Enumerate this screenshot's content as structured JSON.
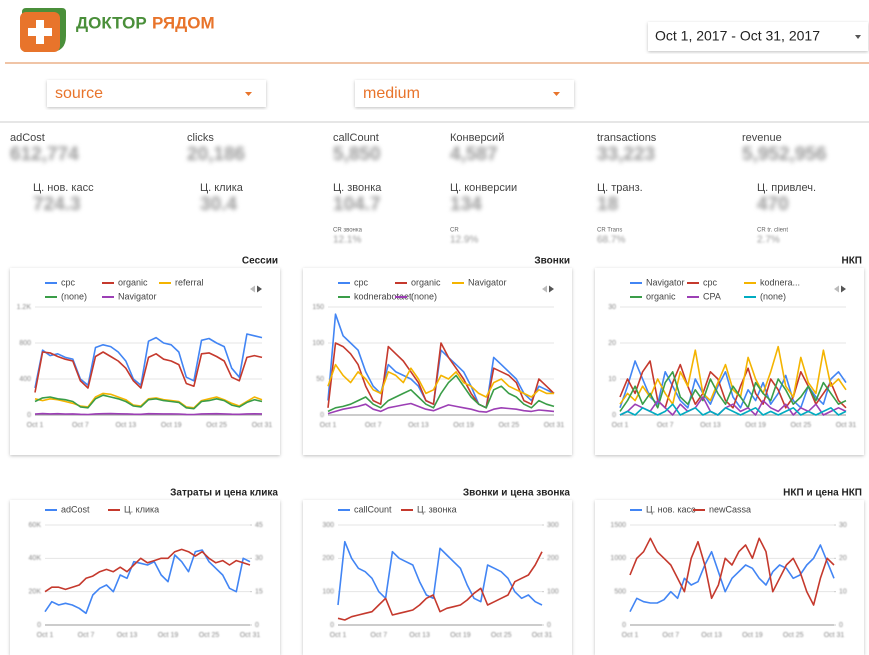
{
  "header": {
    "logo_word_1": "ДОКТОР",
    "logo_word_2": "РЯДОМ",
    "date_range": "Oct 1, 2017 - Oct 31, 2017"
  },
  "filters": [
    "source",
    "medium"
  ],
  "metrics": [
    {
      "label": "adCost",
      "value": "612,774"
    },
    {
      "label": "clicks",
      "value": "20,186"
    },
    {
      "label": "callCount",
      "value": "5,850"
    },
    {
      "label": "Конверсий",
      "value": "4,587"
    },
    {
      "label": "transactions",
      "value": "33,223"
    },
    {
      "label": "revenue",
      "value": "5,952,956"
    },
    {
      "label": "Ц. нов. касс",
      "value": "724.3"
    },
    {
      "label": "Ц. клика",
      "value": "30.4"
    },
    {
      "label": "Ц. звонка",
      "value": "104.7"
    },
    {
      "label": "Ц. конверсии",
      "value": "134"
    },
    {
      "label": "Ц. транз.",
      "value": "18"
    },
    {
      "label": "Ц. привлеч.",
      "value": "470"
    }
  ],
  "cr_metrics": [
    {
      "label": "CR звонка",
      "value": "12.1%"
    },
    {
      "label": "CR",
      "value": "12.9%"
    },
    {
      "label": "CR Trans",
      "value": "68.7%"
    },
    {
      "label": "CR tr. client",
      "value": "2.7%"
    }
  ],
  "chart_data": [
    {
      "type": "line",
      "title": "Сессии",
      "categories": [
        "Oct 1",
        null,
        null,
        null,
        null,
        null,
        "Oct 7",
        null,
        null,
        null,
        null,
        null,
        "Oct 13",
        null,
        null,
        null,
        null,
        null,
        "Oct 19",
        null,
        null,
        null,
        null,
        null,
        "Oct 25",
        null,
        null,
        null,
        null,
        null,
        "Oct 31"
      ],
      "ylim": [
        0,
        1200
      ],
      "yticks": [
        0,
        400,
        800,
        {
          "value": 1200,
          "label": "1.2K"
        }
      ],
      "grid": true,
      "series": [
        {
          "name": "cpc",
          "color": "#4285f4",
          "values": [
            300,
            720,
            660,
            680,
            640,
            620,
            400,
            330,
            750,
            780,
            760,
            700,
            600,
            400,
            330,
            820,
            860,
            800,
            780,
            700,
            420,
            380,
            830,
            850,
            800,
            760,
            520,
            420,
            900,
            880,
            860
          ]
        },
        {
          "name": "organic",
          "color": "#c5392d",
          "values": [
            250,
            700,
            690,
            650,
            620,
            600,
            380,
            300,
            650,
            700,
            650,
            600,
            520,
            380,
            300,
            640,
            680,
            620,
            600,
            560,
            350,
            320,
            680,
            690,
            650,
            600,
            420,
            380,
            640,
            660,
            640
          ]
        },
        {
          "name": "referral",
          "color": "#f4b400",
          "values": [
            180,
            160,
            180,
            170,
            150,
            130,
            100,
            90,
            200,
            240,
            230,
            200,
            170,
            110,
            100,
            180,
            190,
            170,
            160,
            150,
            90,
            80,
            160,
            180,
            200,
            170,
            130,
            100,
            150,
            200,
            170
          ]
        },
        {
          "name": "(none)",
          "color": "#3a9d48",
          "values": [
            150,
            190,
            200,
            180,
            170,
            150,
            90,
            80,
            180,
            220,
            200,
            180,
            150,
            100,
            90,
            170,
            180,
            160,
            150,
            140,
            80,
            70,
            150,
            160,
            180,
            160,
            110,
            90,
            140,
            170,
            150
          ]
        },
        {
          "name": "Navigator",
          "color": "#9c3fb5",
          "values": [
            10,
            15,
            12,
            14,
            10,
            12,
            8,
            6,
            12,
            14,
            15,
            13,
            12,
            9,
            8,
            14,
            13,
            12,
            12,
            11,
            7,
            6,
            12,
            13,
            14,
            12,
            9,
            8,
            12,
            13,
            12
          ]
        }
      ]
    },
    {
      "type": "line",
      "title": "Звонки",
      "categories": [
        "Oct 1",
        null,
        null,
        null,
        null,
        null,
        "Oct 7",
        null,
        null,
        null,
        null,
        null,
        "Oct 13",
        null,
        null,
        null,
        null,
        null,
        "Oct 19",
        null,
        null,
        null,
        null,
        null,
        "Oct 25",
        null,
        null,
        null,
        null,
        null,
        "Oct 31"
      ],
      "ylim": [
        0,
        150
      ],
      "yticks": [
        0,
        50,
        100,
        150
      ],
      "grid": true,
      "series": [
        {
          "name": "cpc",
          "color": "#4285f4",
          "values": [
            20,
            140,
            110,
            100,
            90,
            60,
            40,
            30,
            70,
            60,
            55,
            50,
            40,
            20,
            15,
            90,
            80,
            70,
            60,
            40,
            15,
            10,
            80,
            70,
            60,
            50,
            30,
            20,
            40,
            35,
            30
          ]
        },
        {
          "name": "organic",
          "color": "#c5392d",
          "values": [
            10,
            100,
            95,
            85,
            70,
            40,
            20,
            15,
            95,
            85,
            75,
            60,
            45,
            20,
            15,
            100,
            80,
            65,
            50,
            30,
            15,
            10,
            65,
            60,
            55,
            45,
            20,
            15,
            50,
            40,
            30
          ]
        },
        {
          "name": "Navigator",
          "color": "#f4b400",
          "values": [
            40,
            70,
            55,
            45,
            60,
            50,
            35,
            30,
            60,
            55,
            45,
            65,
            50,
            30,
            35,
            55,
            50,
            60,
            45,
            40,
            30,
            25,
            45,
            50,
            40,
            35,
            30,
            25,
            35,
            30,
            30
          ]
        },
        {
          "name": "kodnerabotaet",
          "color": "#3a9d48",
          "values": [
            5,
            10,
            12,
            15,
            20,
            25,
            15,
            10,
            20,
            25,
            30,
            35,
            25,
            15,
            10,
            30,
            45,
            55,
            40,
            25,
            15,
            10,
            35,
            40,
            30,
            25,
            15,
            10,
            20,
            15,
            12
          ]
        },
        {
          "name": "(none)",
          "color": "#9c3fb5",
          "values": [
            2,
            5,
            8,
            10,
            12,
            15,
            8,
            5,
            10,
            12,
            14,
            16,
            12,
            8,
            6,
            10,
            14,
            12,
            10,
            8,
            5,
            4,
            8,
            10,
            9,
            8,
            6,
            5,
            7,
            6,
            5
          ]
        }
      ]
    },
    {
      "type": "line",
      "title": "НКП",
      "categories": [
        "Oct 1",
        null,
        null,
        null,
        null,
        null,
        "Oct 7",
        null,
        null,
        null,
        null,
        null,
        "Oct 13",
        null,
        null,
        null,
        null,
        null,
        "Oct 19",
        null,
        null,
        null,
        null,
        null,
        "Oct 25",
        null,
        null,
        null,
        null,
        null,
        "Oct 31"
      ],
      "ylim": [
        0,
        30
      ],
      "yticks": [
        0,
        10,
        20,
        30
      ],
      "grid": true,
      "series": [
        {
          "name": "Navigator",
          "color": "#4285f4",
          "values": [
            2,
            8,
            15,
            10,
            5,
            3,
            12,
            8,
            4,
            2,
            10,
            6,
            3,
            8,
            12,
            5,
            2,
            7,
            4,
            9,
            3,
            6,
            11,
            4,
            2,
            8,
            5,
            3,
            10,
            12,
            9
          ]
        },
        {
          "name": "cpc",
          "color": "#c5392d",
          "values": [
            5,
            10,
            6,
            12,
            15,
            4,
            2,
            9,
            14,
            8,
            3,
            6,
            12,
            10,
            4,
            2,
            8,
            13,
            6,
            3,
            10,
            7,
            2,
            5,
            12,
            8,
            3,
            6,
            9,
            4,
            2
          ]
        },
        {
          "name": "kodnera...",
          "color": "#f4b400",
          "values": [
            3,
            6,
            4,
            8,
            5,
            10,
            6,
            3,
            12,
            8,
            18,
            6,
            4,
            9,
            14,
            7,
            5,
            16,
            10,
            6,
            12,
            19,
            8,
            5,
            16,
            9,
            6,
            18,
            8,
            10,
            7
          ]
        },
        {
          "name": "organic",
          "color": "#3a9d48",
          "values": [
            1,
            4,
            8,
            3,
            6,
            2,
            9,
            12,
            5,
            3,
            7,
            4,
            10,
            6,
            3,
            8,
            5,
            2,
            9,
            6,
            4,
            10,
            7,
            3,
            5,
            8,
            4,
            9,
            6,
            3,
            4
          ]
        },
        {
          "name": "CPA",
          "color": "#9c3fb5",
          "values": [
            0,
            1,
            3,
            2,
            1,
            4,
            2,
            0,
            3,
            1,
            2,
            5,
            1,
            0,
            2,
            3,
            1,
            2,
            0,
            4,
            2,
            1,
            3,
            0,
            2,
            1,
            3,
            0,
            1,
            2,
            1
          ]
        },
        {
          "name": "(none)",
          "color": "#00acc1",
          "values": [
            0,
            1,
            0,
            2,
            1,
            0,
            1,
            3,
            0,
            1,
            2,
            0,
            1,
            0,
            2,
            1,
            0,
            1,
            2,
            0,
            1,
            0,
            1,
            2,
            0,
            1,
            0,
            1,
            2,
            0,
            1
          ]
        }
      ]
    },
    {
      "type": "line",
      "title": "Затраты и цена клика",
      "categories": [
        "Oct 1",
        null,
        null,
        null,
        null,
        null,
        "Oct 7",
        null,
        null,
        null,
        null,
        null,
        "Oct 13",
        null,
        null,
        null,
        null,
        null,
        "Oct 19",
        null,
        null,
        null,
        null,
        null,
        "Oct 25",
        null,
        null,
        null,
        null,
        null,
        "Oct 31"
      ],
      "ylim": [
        0,
        60000
      ],
      "yticks": [
        0,
        {
          "value": 20000,
          "label": "20K"
        },
        {
          "value": 40000,
          "label": "40K"
        },
        {
          "value": 60000,
          "label": "60K"
        }
      ],
      "y2lim": [
        0,
        45
      ],
      "y2ticks": [
        0,
        15,
        30,
        45
      ],
      "grid": true,
      "series": [
        {
          "name": "adCost",
          "color": "#4285f4",
          "values": [
            8000,
            14000,
            12000,
            13000,
            12000,
            10000,
            7000,
            18000,
            22000,
            24000,
            20000,
            30000,
            28000,
            38000,
            37000,
            36000,
            38000,
            30000,
            26000,
            42000,
            38000,
            32000,
            44000,
            45000,
            38000,
            34000,
            30000,
            22000,
            20000,
            40000,
            38000
          ]
        },
        {
          "name": "Ц. клика",
          "color": "#c5392d",
          "axis": "y2",
          "values": [
            15,
            17,
            17,
            16,
            17,
            18,
            21,
            22,
            24,
            25,
            24,
            26,
            24,
            27,
            30,
            28,
            29,
            30,
            30,
            33,
            34,
            33,
            31,
            33,
            30,
            28,
            29,
            27,
            29,
            28,
            27
          ]
        }
      ]
    },
    {
      "type": "line",
      "title": "Звонки и цена звонка",
      "categories": [
        "Oct 1",
        null,
        null,
        null,
        null,
        null,
        "Oct 7",
        null,
        null,
        null,
        null,
        null,
        "Oct 13",
        null,
        null,
        null,
        null,
        null,
        "Oct 19",
        null,
        null,
        null,
        null,
        null,
        "Oct 25",
        null,
        null,
        null,
        null,
        null,
        "Oct 31"
      ],
      "ylim": [
        0,
        300
      ],
      "yticks": [
        0,
        100,
        200,
        300
      ],
      "y2lim": [
        0,
        300
      ],
      "y2ticks": [
        0,
        100,
        200,
        300
      ],
      "grid": true,
      "series": [
        {
          "name": "callCount",
          "color": "#4285f4",
          "values": [
            60,
            250,
            200,
            170,
            160,
            140,
            100,
            80,
            220,
            200,
            190,
            180,
            130,
            90,
            80,
            230,
            210,
            190,
            170,
            120,
            80,
            70,
            180,
            170,
            160,
            140,
            100,
            80,
            90,
            70,
            60
          ]
        },
        {
          "name": "Ц. звонка",
          "color": "#c5392d",
          "axis": "y2",
          "values": [
            20,
            15,
            25,
            30,
            35,
            40,
            60,
            80,
            30,
            35,
            40,
            45,
            60,
            80,
            90,
            40,
            50,
            55,
            60,
            75,
            95,
            110,
            60,
            70,
            80,
            90,
            130,
            140,
            150,
            180,
            220
          ]
        }
      ]
    },
    {
      "type": "line",
      "title": "НКП и цена НКП",
      "categories": [
        "Oct 1",
        null,
        null,
        null,
        null,
        null,
        "Oct 7",
        null,
        null,
        null,
        null,
        null,
        "Oct 13",
        null,
        null,
        null,
        null,
        null,
        "Oct 19",
        null,
        null,
        null,
        null,
        null,
        "Oct 25",
        null,
        null,
        null,
        null,
        null,
        "Oct 31"
      ],
      "ylim": [
        0,
        1500
      ],
      "yticks": [
        0,
        500,
        1000,
        1500
      ],
      "y2lim": [
        0,
        30
      ],
      "y2ticks": [
        0,
        10,
        20,
        30
      ],
      "grid": true,
      "series": [
        {
          "name": "Ц. нов. касс",
          "color": "#4285f4",
          "values": [
            200,
            400,
            350,
            330,
            330,
            380,
            500,
            400,
            700,
            600,
            650,
            900,
            1100,
            800,
            500,
            700,
            800,
            900,
            850,
            700,
            600,
            800,
            900,
            850,
            700,
            750,
            900,
            1000,
            1200,
            950,
            700
          ]
        },
        {
          "name": "newCassa",
          "color": "#c5392d",
          "axis": "y2",
          "values": [
            15,
            20,
            22,
            26,
            22,
            20,
            18,
            14,
            10,
            20,
            25,
            18,
            8,
            12,
            20,
            18,
            22,
            24,
            20,
            26,
            22,
            10,
            14,
            18,
            20,
            16,
            10,
            6,
            14,
            20,
            18
          ]
        }
      ]
    }
  ]
}
